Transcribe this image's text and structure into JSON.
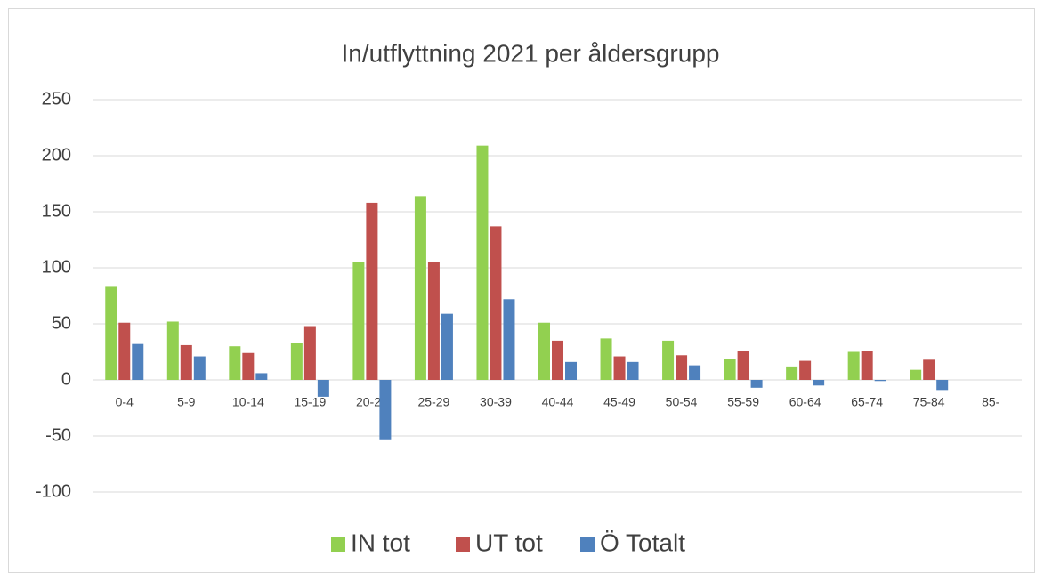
{
  "chart_data": {
    "type": "bar",
    "title": "In/utflyttning 2021 per åldersgrupp",
    "categories": [
      "0-4",
      "5-9",
      "10-14",
      "15-19",
      "20-24",
      "25-29",
      "30-39",
      "40-44",
      "45-49",
      "50-54",
      "55-59",
      "60-64",
      "65-74",
      "75-84",
      "85-"
    ],
    "series": [
      {
        "name": "IN tot",
        "color": "#92d050",
        "values": [
          83,
          52,
          30,
          33,
          105,
          164,
          209,
          51,
          37,
          35,
          19,
          12,
          25,
          9,
          0
        ]
      },
      {
        "name": "UT tot",
        "color": "#c0504d",
        "values": [
          51,
          31,
          24,
          48,
          158,
          105,
          137,
          35,
          21,
          22,
          26,
          17,
          26,
          18,
          0
        ]
      },
      {
        "name": "Ö Totalt",
        "color": "#4f81bd",
        "values": [
          32,
          21,
          6,
          -15,
          -53,
          59,
          72,
          16,
          16,
          13,
          -7,
          -5,
          -1,
          -9,
          0
        ]
      }
    ],
    "ylim": [
      -100,
      250
    ],
    "yticks": [
      -100,
      -50,
      0,
      50,
      100,
      150,
      200,
      250
    ],
    "grid": true,
    "legend": "bottom"
  }
}
